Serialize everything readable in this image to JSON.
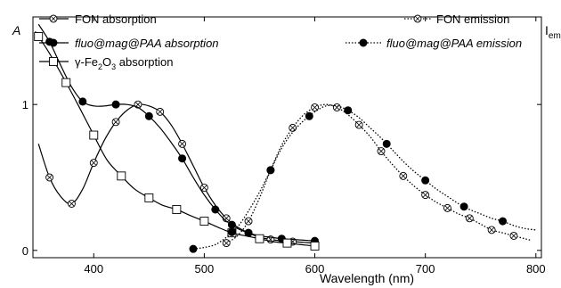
{
  "chart_data": {
    "type": "line",
    "xlabel": "Wavelength (nm)",
    "ylabel_left": "A",
    "ylabel_right": "I",
    "ylabel_right_sub": "em",
    "xlim": [
      345,
      805
    ],
    "ylim": [
      -0.05,
      1.6
    ],
    "xticks": [
      400,
      500,
      600,
      700,
      800
    ],
    "yticks": [
      0,
      1
    ],
    "grid": false,
    "legend_placement": "top",
    "series": [
      {
        "name": "FON absorption",
        "style": "solid",
        "marker": "circle-x",
        "points": [
          [
            350,
            0.73
          ],
          [
            360,
            0.5
          ],
          [
            370,
            0.37
          ],
          [
            380,
            0.32
          ],
          [
            390,
            0.42
          ],
          [
            400,
            0.6
          ],
          [
            410,
            0.76
          ],
          [
            420,
            0.88
          ],
          [
            430,
            0.96
          ],
          [
            440,
            1.0
          ],
          [
            450,
            0.99
          ],
          [
            460,
            0.95
          ],
          [
            470,
            0.86
          ],
          [
            480,
            0.73
          ],
          [
            490,
            0.58
          ],
          [
            500,
            0.43
          ],
          [
            510,
            0.31
          ],
          [
            520,
            0.22
          ],
          [
            530,
            0.16
          ],
          [
            540,
            0.12
          ],
          [
            550,
            0.09
          ],
          [
            560,
            0.075
          ],
          [
            570,
            0.065
          ],
          [
            580,
            0.06
          ],
          [
            590,
            0.055
          ],
          [
            600,
            0.05
          ]
        ],
        "markers_at": [
          360,
          380,
          400,
          420,
          440,
          460,
          480,
          500,
          520,
          540,
          560,
          580,
          600
        ]
      },
      {
        "name": "fluo@mag@PAA absorption",
        "style": "solid",
        "marker": "filled-circle",
        "points": [
          [
            350,
            1.55
          ],
          [
            360,
            1.43
          ],
          [
            370,
            1.27
          ],
          [
            380,
            1.12
          ],
          [
            390,
            1.02
          ],
          [
            400,
            0.99
          ],
          [
            410,
            0.99
          ],
          [
            420,
            1.0
          ],
          [
            430,
            1.0
          ],
          [
            440,
            0.98
          ],
          [
            450,
            0.92
          ],
          [
            460,
            0.84
          ],
          [
            470,
            0.74
          ],
          [
            480,
            0.63
          ],
          [
            490,
            0.5
          ],
          [
            500,
            0.38
          ],
          [
            510,
            0.28
          ],
          [
            520,
            0.2
          ],
          [
            530,
            0.15
          ],
          [
            540,
            0.12
          ],
          [
            550,
            0.1
          ],
          [
            560,
            0.09
          ],
          [
            570,
            0.08
          ],
          [
            580,
            0.075
          ],
          [
            590,
            0.07
          ],
          [
            600,
            0.065
          ]
        ],
        "markers_at": [
          360,
          390,
          420,
          450,
          480,
          510,
          525,
          540,
          570,
          600
        ]
      },
      {
        "name": "γ-Fe2O3 absorption",
        "name_parts": [
          "γ-Fe",
          "2",
          "O",
          "3",
          " absorption"
        ],
        "style": "solid",
        "marker": "open-square",
        "points": [
          [
            347,
            1.5
          ],
          [
            360,
            1.35
          ],
          [
            375,
            1.15
          ],
          [
            387,
            0.98
          ],
          [
            400,
            0.79
          ],
          [
            412,
            0.62
          ],
          [
            425,
            0.51
          ],
          [
            437,
            0.42
          ],
          [
            450,
            0.36
          ],
          [
            462,
            0.31
          ],
          [
            475,
            0.28
          ],
          [
            487,
            0.24
          ],
          [
            500,
            0.2
          ],
          [
            512,
            0.16
          ],
          [
            525,
            0.12
          ],
          [
            537,
            0.1
          ],
          [
            550,
            0.08
          ],
          [
            562,
            0.06
          ],
          [
            575,
            0.05
          ],
          [
            587,
            0.04
          ],
          [
            600,
            0.03
          ]
        ],
        "markers_at": [
          350,
          375,
          400,
          425,
          450,
          475,
          500,
          525,
          550,
          575,
          600
        ]
      },
      {
        "name": "FON emission",
        "style": "dotted",
        "marker": "circle-x",
        "points": [
          [
            520,
            0.05
          ],
          [
            530,
            0.1
          ],
          [
            540,
            0.2
          ],
          [
            550,
            0.36
          ],
          [
            560,
            0.55
          ],
          [
            570,
            0.72
          ],
          [
            580,
            0.84
          ],
          [
            590,
            0.93
          ],
          [
            600,
            0.98
          ],
          [
            610,
            1.0
          ],
          [
            620,
            0.98
          ],
          [
            630,
            0.93
          ],
          [
            640,
            0.86
          ],
          [
            650,
            0.78
          ],
          [
            660,
            0.68
          ],
          [
            670,
            0.59
          ],
          [
            680,
            0.51
          ],
          [
            690,
            0.44
          ],
          [
            700,
            0.38
          ],
          [
            710,
            0.33
          ],
          [
            720,
            0.29
          ],
          [
            730,
            0.25
          ],
          [
            740,
            0.22
          ],
          [
            750,
            0.18
          ],
          [
            760,
            0.14
          ],
          [
            770,
            0.12
          ],
          [
            780,
            0.1
          ],
          [
            790,
            0.08
          ],
          [
            795,
            0.07
          ]
        ],
        "markers_at": [
          520,
          540,
          560,
          580,
          600,
          620,
          640,
          660,
          680,
          700,
          720,
          740,
          760,
          780
        ]
      },
      {
        "name": "fluo@mag@PAA emission",
        "style": "dotted",
        "marker": "filled-circle",
        "points": [
          [
            490,
            0.01
          ],
          [
            500,
            0.02
          ],
          [
            510,
            0.04
          ],
          [
            520,
            0.09
          ],
          [
            530,
            0.16
          ],
          [
            540,
            0.27
          ],
          [
            550,
            0.4
          ],
          [
            560,
            0.55
          ],
          [
            570,
            0.7
          ],
          [
            580,
            0.81
          ],
          [
            590,
            0.89
          ],
          [
            600,
            0.95
          ],
          [
            610,
            0.99
          ],
          [
            620,
            0.99
          ],
          [
            630,
            0.96
          ],
          [
            640,
            0.91
          ],
          [
            650,
            0.84
          ],
          [
            660,
            0.77
          ],
          [
            670,
            0.69
          ],
          [
            680,
            0.61
          ],
          [
            690,
            0.54
          ],
          [
            700,
            0.48
          ],
          [
            710,
            0.42
          ],
          [
            720,
            0.37
          ],
          [
            730,
            0.32
          ],
          [
            740,
            0.28
          ],
          [
            750,
            0.25
          ],
          [
            760,
            0.22
          ],
          [
            770,
            0.2
          ],
          [
            780,
            0.17
          ],
          [
            790,
            0.15
          ],
          [
            800,
            0.14
          ]
        ],
        "markers_at": [
          490,
          525,
          560,
          595,
          630,
          665,
          700,
          735,
          770
        ]
      }
    ]
  }
}
